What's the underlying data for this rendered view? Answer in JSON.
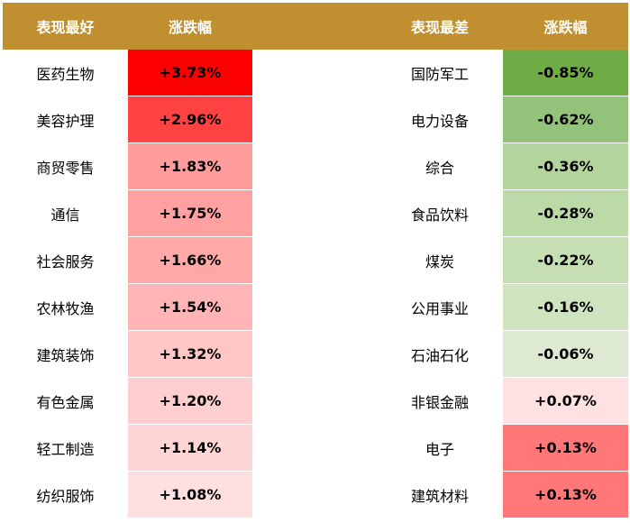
{
  "table": {
    "header": [
      "表现最好",
      "涨跌幅",
      "表现最差",
      "涨跌幅"
    ],
    "rows": [
      [
        "医药生物",
        "+3.73%",
        "国防军工",
        "-0.85%"
      ],
      [
        "美容护理",
        "+2.96%",
        "电力设备",
        "-0.62%"
      ],
      [
        "商贸零售",
        "+1.83%",
        "综合",
        "-0.36%"
      ],
      [
        "通信",
        "+1.75%",
        "食品饮料",
        "-0.28%"
      ],
      [
        "社会服务",
        "+1.66%",
        "煤炭",
        "-0.22%"
      ],
      [
        "农林牧渔",
        "+1.54%",
        "公用事业",
        "-0.16%"
      ],
      [
        "建筑装饰",
        "+1.32%",
        "石油石化",
        "-0.06%"
      ],
      [
        "有色金属",
        "+1.20%",
        "非银金融",
        "+0.07%"
      ],
      [
        "轻工制造",
        "+1.14%",
        "电子",
        "+0.13%"
      ],
      [
        "纺织服饰",
        "+1.08%",
        "建筑材料",
        "+0.13%"
      ]
    ]
  }
}
